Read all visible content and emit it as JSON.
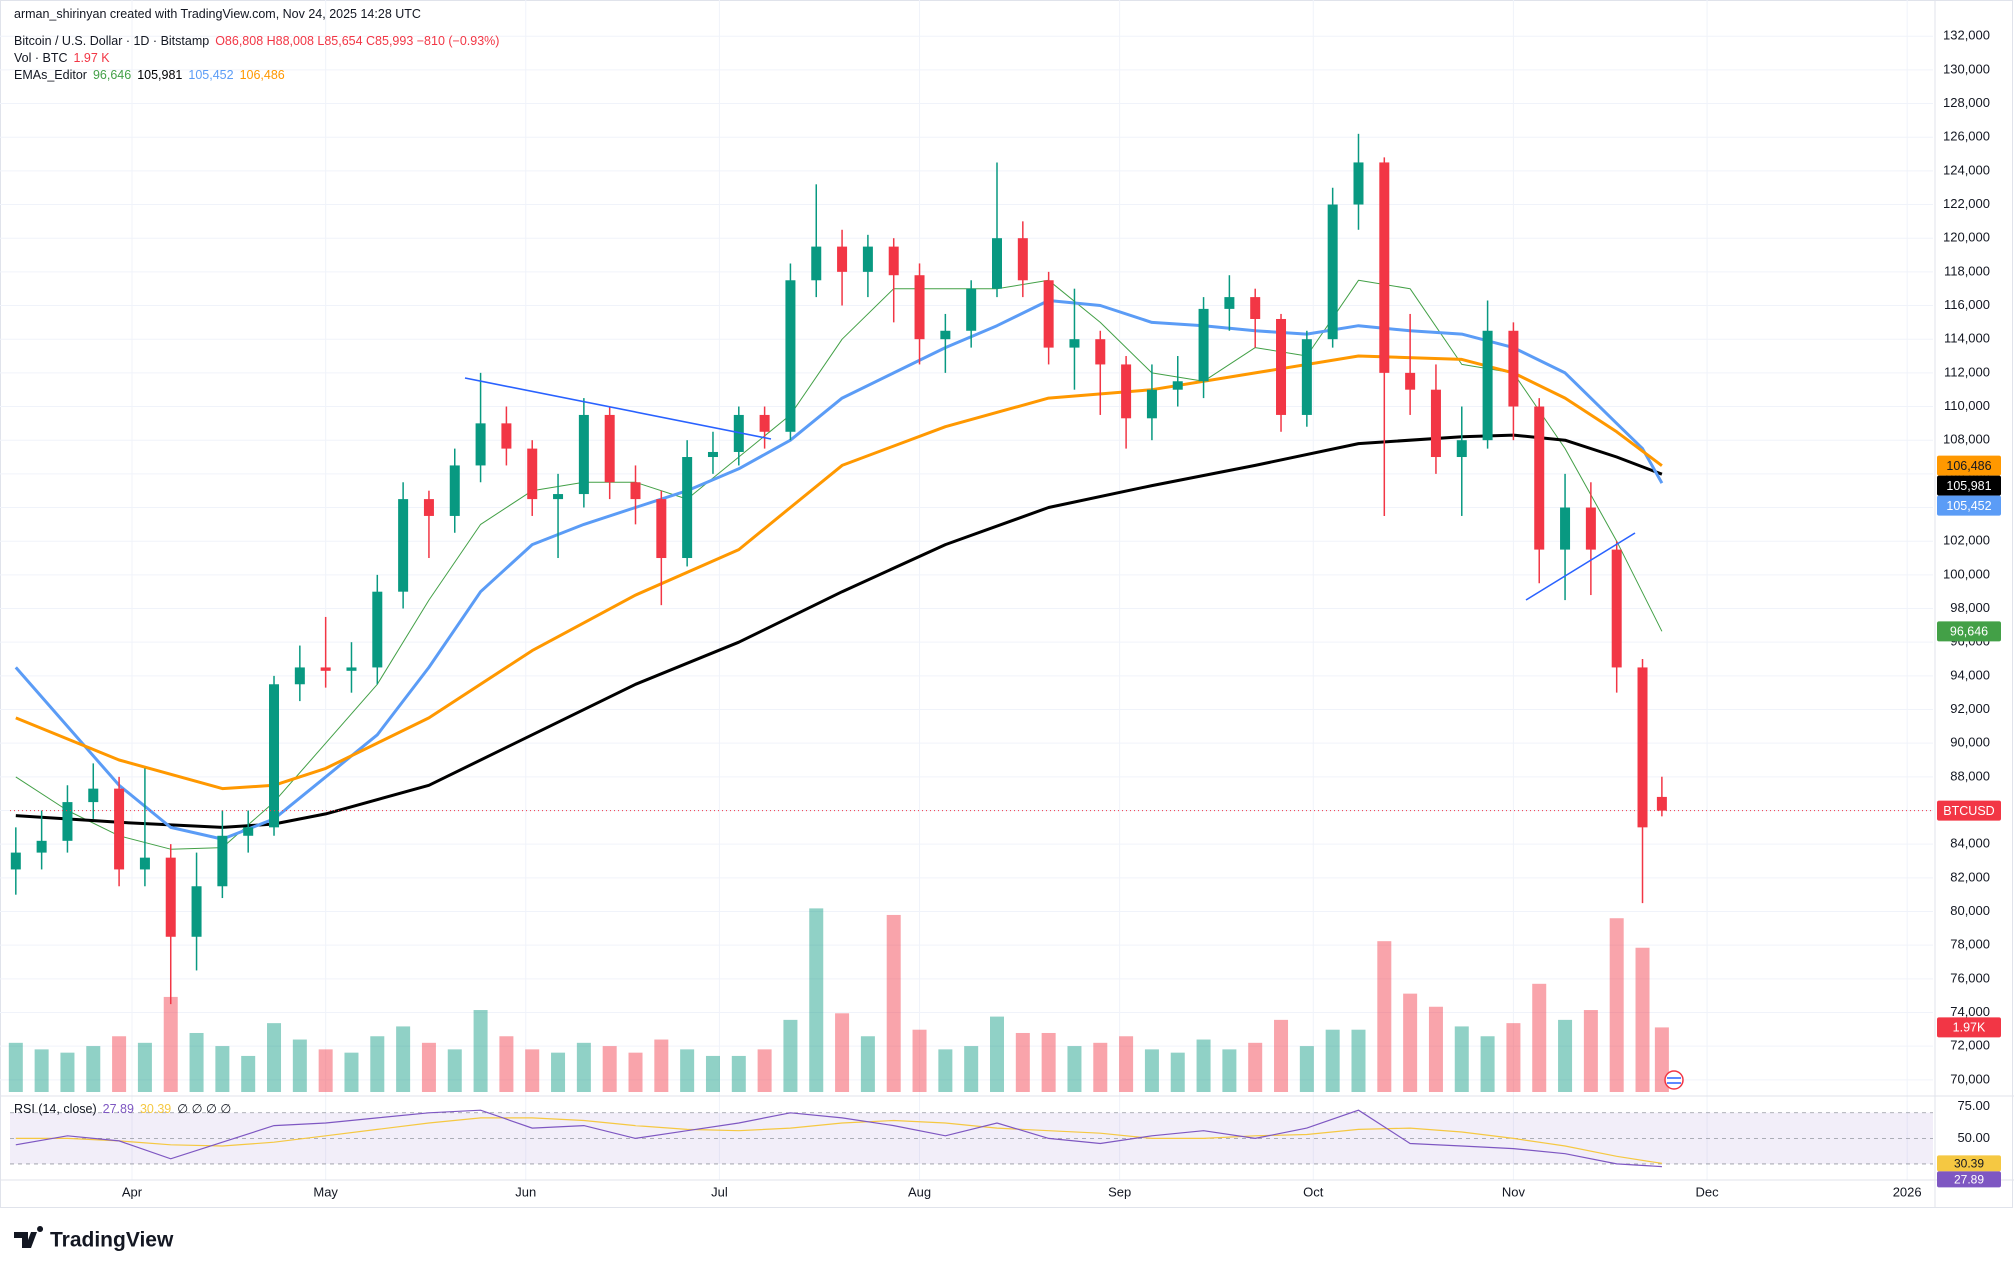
{
  "header": {
    "credit": "arman_shirinyan created with TradingView.com, Nov 24, 2025 14:28 UTC",
    "symbol": "Bitcoin / U.S. Dollar · 1D · Bitstamp",
    "ohlc": "O86,808 H88,008 L85,654 C85,993 −810 (−0.93%)",
    "volume_title": "Vol · BTC",
    "volume_value": "1.97 K",
    "ema_title": "EMAs_Editor"
  },
  "chart_data": {
    "type": "candlestick",
    "x": [
      72,
      76,
      80,
      84,
      88,
      92,
      96,
      100,
      104,
      108,
      112,
      116,
      120,
      124,
      128,
      132,
      136,
      140,
      144,
      148,
      152,
      156,
      160,
      164,
      168,
      172,
      176,
      180,
      184,
      188,
      192,
      196,
      200,
      204,
      208,
      212,
      216,
      220,
      224,
      228,
      232,
      236,
      240,
      244,
      248,
      252,
      256,
      260,
      264,
      268,
      272,
      276,
      280,
      284,
      288,
      292,
      296,
      300,
      304,
      308,
      312,
      316,
      320,
      324,
      327
    ],
    "open": [
      82500,
      83500,
      84200,
      86500,
      87300,
      82500,
      83200,
      78500,
      81500,
      84500,
      85000,
      93500,
      94500,
      94300,
      94500,
      99000,
      104500,
      103500,
      106500,
      109000,
      107500,
      104500,
      104800,
      109500,
      105500,
      104500,
      101000,
      107000,
      107300,
      109500,
      108500,
      117500,
      119500,
      118000,
      119500,
      117800,
      114000,
      114500,
      117000,
      120000,
      117500,
      113500,
      114000,
      112500,
      109300,
      111000,
      111500,
      115800,
      116500,
      115200,
      109500,
      114000,
      122000,
      124500,
      112000,
      111000,
      107000,
      108000,
      114500,
      110000,
      101500,
      104000,
      101500,
      94500,
      86808
    ],
    "high": [
      85000,
      86000,
      87500,
      88800,
      88000,
      88500,
      84000,
      83500,
      86000,
      86000,
      94000,
      95800,
      97500,
      96000,
      100000,
      105500,
      105000,
      107500,
      112000,
      110000,
      108000,
      106000,
      110500,
      110000,
      106500,
      105000,
      108000,
      108500,
      110000,
      110000,
      118500,
      123200,
      120500,
      120200,
      120000,
      118500,
      115500,
      117500,
      124500,
      121000,
      118000,
      117000,
      114500,
      113000,
      112500,
      113000,
      116500,
      117800,
      117000,
      115500,
      114500,
      123000,
      126200,
      124800,
      115500,
      112500,
      110000,
      116300,
      115000,
      110500,
      106000,
      105500,
      102000,
      95000,
      88008
    ],
    "low": [
      81000,
      82500,
      83500,
      85500,
      81500,
      81500,
      74500,
      76500,
      80800,
      83500,
      84500,
      92500,
      93300,
      93000,
      93500,
      98000,
      101000,
      102500,
      105500,
      106500,
      103500,
      101000,
      104000,
      104500,
      103000,
      98200,
      100500,
      106000,
      106500,
      107500,
      108000,
      116500,
      116000,
      116500,
      115000,
      112500,
      112000,
      113500,
      116500,
      116500,
      112500,
      111000,
      109500,
      107500,
      108000,
      110000,
      110500,
      114500,
      113500,
      108500,
      108800,
      113500,
      120500,
      103500,
      109500,
      106000,
      103500,
      107500,
      108000,
      99500,
      98500,
      98800,
      93000,
      80500,
      85654
    ],
    "close": [
      83500,
      84200,
      86500,
      87300,
      82500,
      83200,
      78500,
      81500,
      84500,
      85000,
      93500,
      94500,
      94300,
      94500,
      99000,
      104500,
      103500,
      106500,
      109000,
      107500,
      104500,
      104800,
      109500,
      105500,
      104500,
      101000,
      107000,
      107300,
      109500,
      108500,
      117500,
      119500,
      118000,
      119500,
      117800,
      114000,
      114500,
      117000,
      120000,
      117500,
      113500,
      114000,
      112500,
      109300,
      111000,
      111500,
      115800,
      116500,
      115200,
      109500,
      114000,
      122000,
      124500,
      112000,
      111000,
      107000,
      108000,
      114500,
      110000,
      101500,
      104000,
      101500,
      94500,
      85000,
      85993
    ],
    "up_color": "#089981",
    "down_color": "#f23645",
    "xlim": [
      71.1,
      369
    ],
    "xticks": [
      {
        "value": 90,
        "label": "Apr"
      },
      {
        "value": 120,
        "label": "May"
      },
      {
        "value": 151,
        "label": "Jun"
      },
      {
        "value": 181,
        "label": "Jul"
      },
      {
        "value": 212,
        "label": "Aug"
      },
      {
        "value": 243,
        "label": "Sep"
      },
      {
        "value": 273,
        "label": "Oct"
      },
      {
        "value": 304,
        "label": "Nov"
      },
      {
        "value": 334,
        "label": "Dec"
      },
      {
        "value": 365,
        "label": "2026"
      }
    ],
    "ylim": [
      69100,
      134150
    ],
    "yticks": [
      {
        "value": 70000,
        "label": "70,000"
      },
      {
        "value": 72000,
        "label": "72,000"
      },
      {
        "value": 74000,
        "label": "74,000"
      },
      {
        "value": 76000,
        "label": "76,000"
      },
      {
        "value": 78000,
        "label": "78,000"
      },
      {
        "value": 80000,
        "label": "80,000"
      },
      {
        "value": 82000,
        "label": "82,000"
      },
      {
        "value": 84000,
        "label": "84,000"
      },
      {
        "value": 86000,
        "label": "86,000"
      },
      {
        "value": 88000,
        "label": "88,000"
      },
      {
        "value": 90000,
        "label": "90,000"
      },
      {
        "value": 92000,
        "label": "92,000"
      },
      {
        "value": 94000,
        "label": "94,000"
      },
      {
        "value": 96000,
        "label": "96,000"
      },
      {
        "value": 98000,
        "label": "98,000"
      },
      {
        "value": 100000,
        "label": "100,000"
      },
      {
        "value": 102000,
        "label": "102,000"
      },
      {
        "value": 104000,
        "label": "104,000"
      },
      {
        "value": 106000,
        "label": "106,000"
      },
      {
        "value": 108000,
        "label": "108,000"
      },
      {
        "value": 110000,
        "label": "110,000"
      },
      {
        "value": 112000,
        "label": "112,000"
      },
      {
        "value": 114000,
        "label": "114,000"
      },
      {
        "value": 116000,
        "label": "116,000"
      },
      {
        "value": 118000,
        "label": "118,000"
      },
      {
        "value": 120000,
        "label": "120,000"
      },
      {
        "value": 122000,
        "label": "122,000"
      },
      {
        "value": 124000,
        "label": "124,000"
      },
      {
        "value": 126000,
        "label": "126,000"
      },
      {
        "value": 128000,
        "label": "128,000"
      },
      {
        "value": 130000,
        "label": "130,000"
      },
      {
        "value": 132000,
        "label": "132,000"
      }
    ],
    "grid": true,
    "last_price_label": "BTCUSD",
    "volume": {
      "values": [
        1500,
        1300,
        1200,
        1400,
        1700,
        1500,
        2900,
        1800,
        1400,
        1100,
        2100,
        1600,
        1300,
        1200,
        1700,
        2000,
        1500,
        1300,
        2500,
        1700,
        1300,
        1200,
        1500,
        1400,
        1200,
        1600,
        1300,
        1100,
        1100,
        1300,
        2200,
        5600,
        2400,
        1700,
        5400,
        1900,
        1300,
        1400,
        2300,
        1800,
        1800,
        1400,
        1500,
        1700,
        1300,
        1200,
        1600,
        1300,
        1500,
        2200,
        1400,
        1900,
        1900,
        4600,
        3000,
        2600,
        2000,
        1700,
        2100,
        3300,
        2200,
        2500,
        5300,
        4400,
        1970
      ],
      "ylim": [
        0,
        6100
      ],
      "end_label": "1.97K"
    },
    "series": [
      {
        "color": "#43a047",
        "width": 1,
        "end_label": "96,646",
        "x": [
          72,
          80,
          88,
          96,
          104,
          112,
          120,
          128,
          136,
          144,
          152,
          160,
          168,
          176,
          184,
          192,
          200,
          208,
          216,
          224,
          232,
          240,
          248,
          256,
          264,
          272,
          280,
          288,
          296,
          304,
          312,
          320,
          327
        ],
        "values": [
          88000,
          86000,
          84500,
          83700,
          83800,
          86500,
          90000,
          93500,
          98500,
          103000,
          105000,
          105500,
          105500,
          104500,
          107000,
          109500,
          114000,
          117000,
          117000,
          117000,
          117500,
          115000,
          112000,
          111500,
          113500,
          113000,
          117500,
          117000,
          112500,
          112000,
          107500,
          102000,
          96646
        ]
      },
      {
        "color": "#000000",
        "width": 3,
        "end_label": "105,981",
        "x": [
          72,
          88,
          104,
          112,
          120,
          136,
          152,
          168,
          184,
          200,
          216,
          232,
          248,
          264,
          280,
          296,
          304,
          312,
          320,
          327
        ],
        "values": [
          85700,
          85300,
          85000,
          85200,
          85800,
          87500,
          90500,
          93500,
          96000,
          99000,
          101800,
          104000,
          105300,
          106500,
          107800,
          108200,
          108300,
          108000,
          107000,
          105981
        ]
      },
      {
        "color": "#5b9cf6",
        "width": 3,
        "end_label": "105,452",
        "x": [
          72,
          80,
          88,
          96,
          104,
          112,
          120,
          128,
          136,
          144,
          152,
          160,
          168,
          176,
          184,
          192,
          200,
          208,
          216,
          224,
          232,
          240,
          248,
          256,
          264,
          272,
          280,
          288,
          296,
          304,
          312,
          320,
          324,
          327
        ],
        "values": [
          94500,
          91000,
          87500,
          85000,
          84300,
          85500,
          88000,
          90500,
          94500,
          99000,
          101800,
          103000,
          104000,
          105000,
          106300,
          108000,
          110500,
          112000,
          113500,
          114800,
          116300,
          116000,
          115000,
          114800,
          114500,
          114300,
          114800,
          114500,
          114300,
          113500,
          112000,
          109000,
          107500,
          105452
        ]
      },
      {
        "color": "#ff9800",
        "width": 3,
        "end_label": "106,486",
        "x": [
          72,
          88,
          104,
          112,
          120,
          136,
          152,
          168,
          184,
          192,
          200,
          216,
          232,
          248,
          264,
          280,
          296,
          304,
          312,
          320,
          327
        ],
        "values": [
          91500,
          89000,
          87300,
          87500,
          88500,
          91500,
          95500,
          98800,
          101500,
          104000,
          106500,
          108800,
          110500,
          111000,
          112000,
          113000,
          112800,
          112000,
          110500,
          108500,
          106486
        ]
      }
    ],
    "rsi": {
      "title": "RSI (14, close)",
      "extra": "∅ ∅ ∅ ∅",
      "color": "#7e57c2",
      "ma_color": "#f5c842",
      "x": [
        72,
        80,
        88,
        96,
        104,
        112,
        120,
        128,
        136,
        144,
        152,
        160,
        168,
        176,
        184,
        192,
        200,
        208,
        216,
        224,
        232,
        240,
        248,
        256,
        264,
        272,
        280,
        288,
        296,
        304,
        312,
        320,
        327
      ],
      "values": [
        45,
        52,
        48,
        34,
        47,
        60,
        62,
        66,
        70,
        72,
        58,
        60,
        50,
        56,
        62,
        70,
        66,
        60,
        52,
        62,
        50,
        46,
        52,
        56,
        50,
        58,
        72,
        46,
        44,
        42,
        38,
        30,
        27.89
      ],
      "ma_values": [
        50,
        50,
        48,
        45,
        44,
        47,
        52,
        57,
        62,
        66,
        66,
        64,
        60,
        57,
        56,
        58,
        62,
        64,
        62,
        58,
        56,
        54,
        50,
        50,
        52,
        53,
        57,
        58,
        55,
        50,
        44,
        36,
        30.39
      ],
      "end_label": "27.89",
      "ma_end_label": "30.39",
      "ylim": [
        19,
        80
      ],
      "yticks": [
        {
          "value": 75,
          "label": "75.00"
        },
        {
          "value": 50,
          "label": "50.00"
        }
      ],
      "levels": [
        70,
        50,
        30
      ]
    }
  },
  "footer": {
    "logo": "TradingView"
  }
}
